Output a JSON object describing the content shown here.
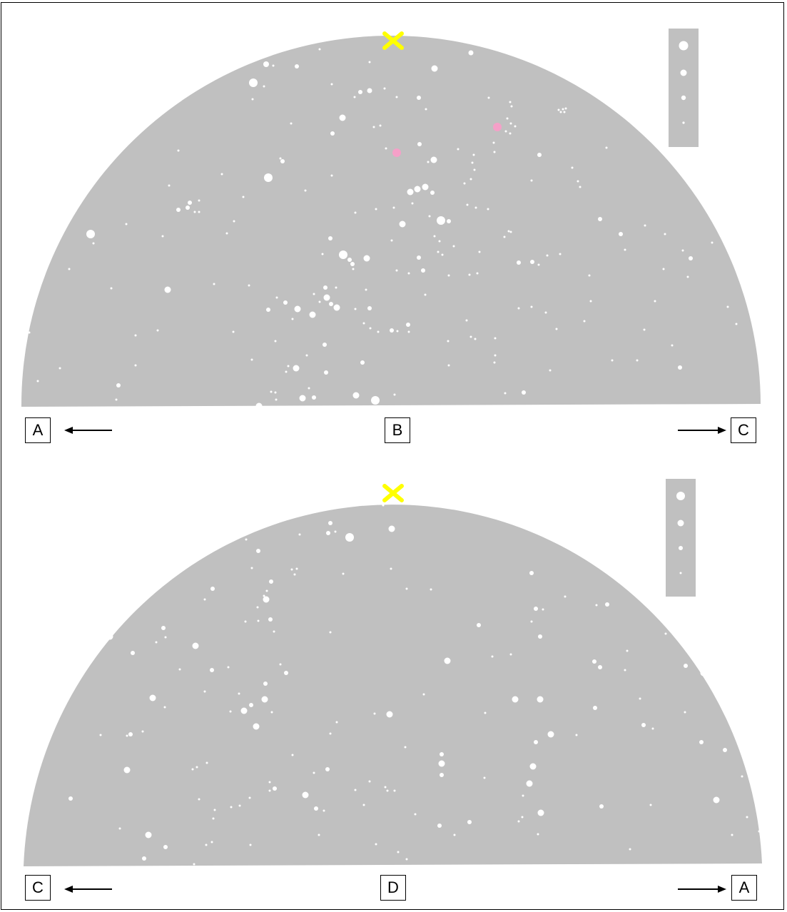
{
  "colors": {
    "sky": "#c0c0c0",
    "star": "#ffffff",
    "zenith_marker": "#ffff00",
    "planet": "#f5a0c8",
    "arrow": "#000000"
  },
  "top_panel": {
    "center_label": "B",
    "left_label": "A",
    "right_label": "C",
    "zenith_marker_icon": "cross-icon",
    "has_planets": true
  },
  "bottom_panel": {
    "center_label": "D",
    "left_label": "C",
    "right_label": "A",
    "zenith_marker_icon": "cross-icon",
    "has_planets": false
  },
  "legend": {
    "description_icon": "star-magnitude-scale",
    "magnitude_levels": 4
  }
}
